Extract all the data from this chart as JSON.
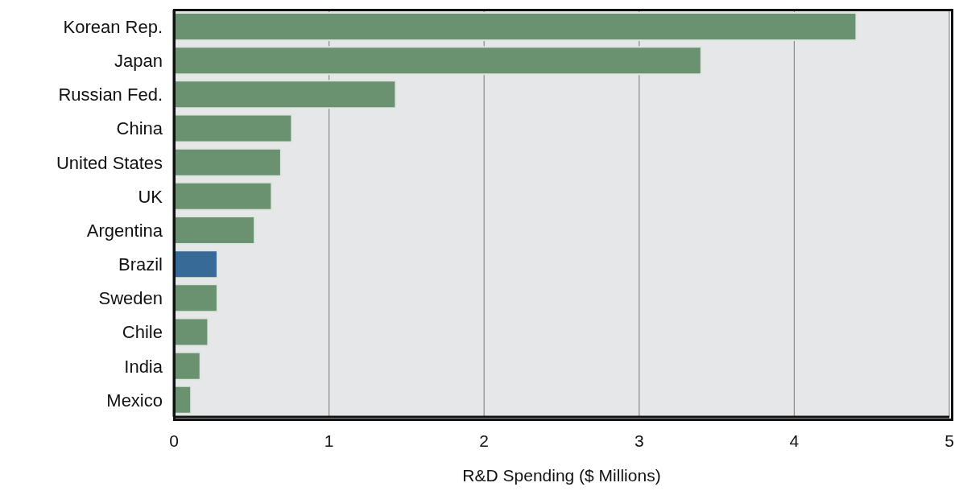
{
  "chart_data": {
    "type": "bar",
    "orientation": "horizontal",
    "xlabel": "R&D Spending ($ Millions)",
    "categories": [
      "Korean Rep.",
      "Japan",
      "Russian Fed.",
      "China",
      "United States",
      "UK",
      "Argentina",
      "Brazil",
      "Sweden",
      "Chile",
      "India",
      "Mexico"
    ],
    "values": [
      4.4,
      3.4,
      1.43,
      0.76,
      0.69,
      0.63,
      0.52,
      0.28,
      0.28,
      0.22,
      0.17,
      0.11
    ],
    "colors": [
      "#6a9270",
      "#6a9270",
      "#6a9270",
      "#6a9270",
      "#6a9270",
      "#6a9270",
      "#6a9270",
      "#376a96",
      "#6a9270",
      "#6a9270",
      "#6a9270",
      "#6a9270"
    ],
    "xlim": [
      0,
      5
    ],
    "xticks": [
      0,
      1,
      2,
      3,
      4,
      5
    ],
    "grid": "x",
    "legend": false
  }
}
